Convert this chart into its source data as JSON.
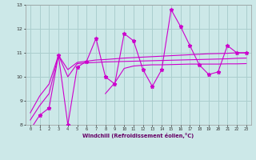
{
  "xlabel": "Windchill (Refroidissement éolien,°C)",
  "bg_color": "#cce8e8",
  "grid_color": "#aacece",
  "line_color": "#cc00cc",
  "x_values": [
    0,
    1,
    2,
    3,
    4,
    5,
    6,
    7,
    8,
    9,
    10,
    11,
    12,
    13,
    14,
    15,
    16,
    17,
    18,
    19,
    20,
    21,
    22,
    23
  ],
  "series1": [
    7.8,
    8.4,
    8.7,
    10.9,
    8.0,
    10.4,
    10.65,
    11.6,
    10.0,
    9.7,
    11.8,
    11.5,
    10.3,
    9.6,
    10.3,
    12.8,
    12.1,
    11.3,
    10.5,
    10.1,
    10.2,
    11.3,
    11.0,
    11.0
  ],
  "series2": [
    8.5,
    9.2,
    9.7,
    10.9,
    10.3,
    10.6,
    10.65,
    10.7,
    10.72,
    10.75,
    10.78,
    10.8,
    10.82,
    10.84,
    10.86,
    10.88,
    10.9,
    10.92,
    10.94,
    10.96,
    10.97,
    10.98,
    11.0,
    11.0
  ],
  "series3": [
    8.2,
    8.8,
    9.3,
    10.9,
    10.0,
    10.55,
    10.58,
    10.6,
    10.62,
    10.63,
    10.64,
    10.65,
    10.66,
    10.67,
    10.68,
    10.69,
    10.7,
    10.71,
    10.72,
    10.73,
    10.74,
    10.75,
    10.77,
    10.78
  ],
  "series4": [
    null,
    null,
    null,
    null,
    null,
    null,
    null,
    null,
    9.3,
    9.75,
    10.35,
    10.45,
    10.48,
    10.5,
    10.5,
    10.51,
    10.52,
    10.53,
    10.53,
    10.53,
    10.53,
    10.54,
    10.54,
    10.55
  ],
  "ylim": [
    8,
    13
  ],
  "xlim": [
    -0.5,
    23.5
  ],
  "yticks": [
    8,
    9,
    10,
    11,
    12,
    13
  ],
  "xticks": [
    0,
    1,
    2,
    3,
    4,
    5,
    6,
    7,
    8,
    9,
    10,
    11,
    12,
    13,
    14,
    15,
    16,
    17,
    18,
    19,
    20,
    21,
    22,
    23
  ]
}
